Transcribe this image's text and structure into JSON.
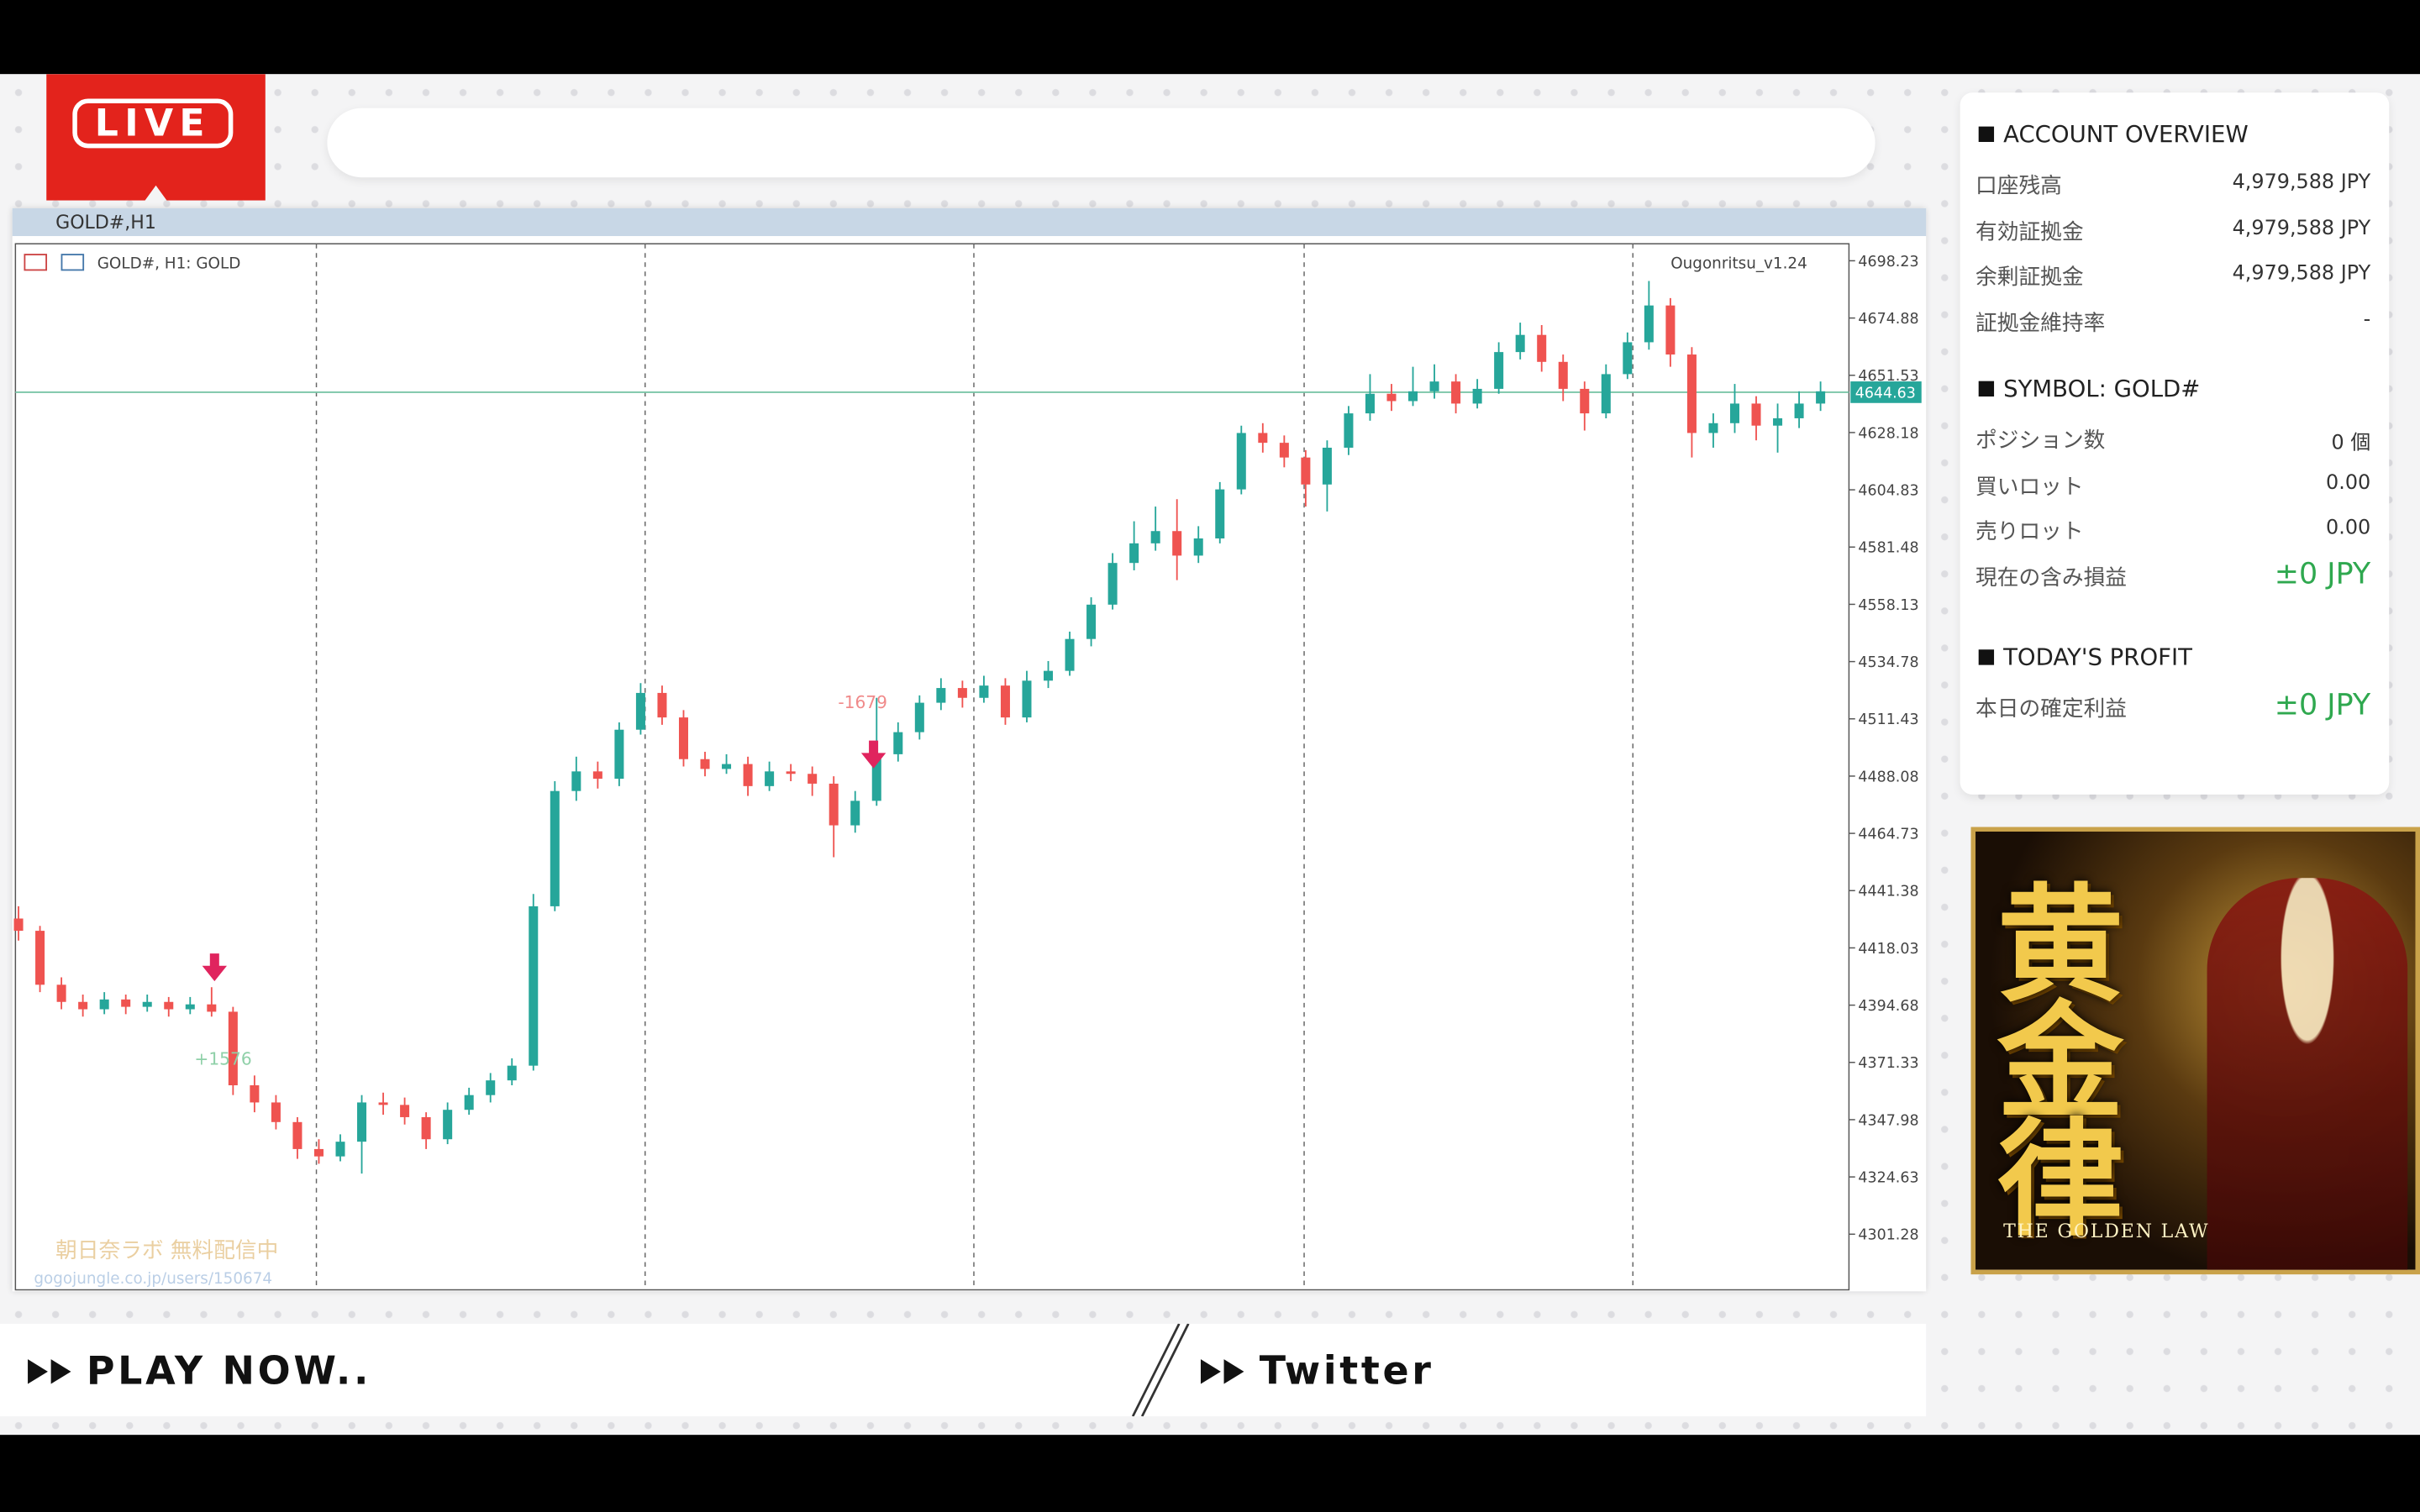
{
  "live_badge": "LIVE",
  "chart": {
    "type": "candlestick",
    "title": "GOLD#,H1",
    "symbol_label": "GOLD#, H1:  GOLD",
    "indicator": "Ougonritsu_v1.24",
    "up_color": "#26a69a",
    "down_color": "#ef5350",
    "ylim": [
      4278.59,
      4705.16
    ],
    "yticks": [
      4698.23,
      4674.88,
      4651.53,
      4628.18,
      4604.83,
      4581.48,
      4558.13,
      4534.78,
      4511.43,
      4488.08,
      4464.73,
      4441.38,
      4418.03,
      4394.68,
      4371.33,
      4347.98,
      4324.63,
      4301.28
    ],
    "current_price": 4644.63,
    "annotations": [
      "+1576",
      "-1679"
    ],
    "watermark": [
      "朝日奈ラボ 無料配信中",
      "gogojungle.co.jp/users/150674"
    ],
    "candles": [
      [
        4430,
        4435,
        4421,
        4425
      ],
      [
        4425,
        4427,
        4400,
        4403
      ],
      [
        4403,
        4406,
        4393,
        4396
      ],
      [
        4396,
        4399,
        4390,
        4393
      ],
      [
        4393,
        4400,
        4391,
        4397
      ],
      [
        4397,
        4399,
        4391,
        4394
      ],
      [
        4394,
        4399,
        4392,
        4396
      ],
      [
        4396,
        4398,
        4390,
        4393
      ],
      [
        4393,
        4398,
        4391,
        4395
      ],
      [
        4395,
        4402,
        4390,
        4392
      ],
      [
        4392,
        4394,
        4358,
        4362
      ],
      [
        4362,
        4366,
        4351,
        4355
      ],
      [
        4355,
        4358,
        4344,
        4347
      ],
      [
        4347,
        4349,
        4332,
        4336
      ],
      [
        4336,
        4340,
        4330,
        4333
      ],
      [
        4333,
        4342,
        4331,
        4339
      ],
      [
        4339,
        4358,
        4326,
        4355
      ],
      [
        4355,
        4359,
        4350,
        4354
      ],
      [
        4354,
        4357,
        4346,
        4349
      ],
      [
        4349,
        4351,
        4336,
        4340
      ],
      [
        4340,
        4355,
        4338,
        4352
      ],
      [
        4352,
        4361,
        4350,
        4358
      ],
      [
        4358,
        4367,
        4355,
        4364
      ],
      [
        4364,
        4373,
        4362,
        4370
      ],
      [
        4370,
        4440,
        4368,
        4435
      ],
      [
        4435,
        4486,
        4433,
        4482
      ],
      [
        4482,
        4496,
        4478,
        4490
      ],
      [
        4490,
        4494,
        4483,
        4487
      ],
      [
        4487,
        4510,
        4484,
        4507
      ],
      [
        4507,
        4526,
        4505,
        4522
      ],
      [
        4522,
        4525,
        4509,
        4512
      ],
      [
        4512,
        4515,
        4492,
        4495
      ],
      [
        4495,
        4498,
        4488,
        4491
      ],
      [
        4491,
        4497,
        4489,
        4493
      ],
      [
        4493,
        4496,
        4480,
        4484
      ],
      [
        4484,
        4494,
        4482,
        4490
      ],
      [
        4490,
        4493,
        4486,
        4489
      ],
      [
        4489,
        4492,
        4480,
        4485
      ],
      [
        4485,
        4488,
        4455,
        4468
      ],
      [
        4468,
        4482,
        4465,
        4478
      ],
      [
        4478,
        4520,
        4476,
        4497
      ],
      [
        4497,
        4510,
        4494,
        4506
      ],
      [
        4506,
        4521,
        4503,
        4518
      ],
      [
        4518,
        4528,
        4515,
        4524
      ],
      [
        4524,
        4527,
        4516,
        4520
      ],
      [
        4520,
        4529,
        4518,
        4525
      ],
      [
        4525,
        4528,
        4509,
        4512
      ],
      [
        4512,
        4531,
        4510,
        4527
      ],
      [
        4527,
        4535,
        4524,
        4531
      ],
      [
        4531,
        4547,
        4529,
        4544
      ],
      [
        4544,
        4561,
        4541,
        4558
      ],
      [
        4558,
        4579,
        4556,
        4575
      ],
      [
        4575,
        4592,
        4572,
        4583
      ],
      [
        4583,
        4598,
        4580,
        4588
      ],
      [
        4588,
        4601,
        4568,
        4578
      ],
      [
        4578,
        4590,
        4575,
        4585
      ],
      [
        4585,
        4608,
        4583,
        4605
      ],
      [
        4605,
        4631,
        4603,
        4628
      ],
      [
        4628,
        4632,
        4620,
        4624
      ],
      [
        4624,
        4627,
        4614,
        4618
      ],
      [
        4618,
        4621,
        4598,
        4607
      ],
      [
        4607,
        4625,
        4596,
        4622
      ],
      [
        4622,
        4639,
        4619,
        4636
      ],
      [
        4636,
        4652,
        4633,
        4644
      ],
      [
        4644,
        4648,
        4637,
        4641
      ],
      [
        4641,
        4655,
        4639,
        4645
      ],
      [
        4645,
        4656,
        4642,
        4649
      ],
      [
        4649,
        4652,
        4636,
        4640
      ],
      [
        4640,
        4650,
        4638,
        4646
      ],
      [
        4646,
        4665,
        4644,
        4661
      ],
      [
        4661,
        4673,
        4658,
        4668
      ],
      [
        4668,
        4672,
        4653,
        4657
      ],
      [
        4657,
        4660,
        4641,
        4646
      ],
      [
        4646,
        4649,
        4629,
        4636
      ],
      [
        4636,
        4656,
        4634,
        4652
      ],
      [
        4652,
        4669,
        4650,
        4665
      ],
      [
        4665,
        4690,
        4662,
        4680
      ],
      [
        4680,
        4683,
        4655,
        4660
      ],
      [
        4660,
        4663,
        4618,
        4628
      ],
      [
        4628,
        4636,
        4622,
        4632
      ],
      [
        4632,
        4648,
        4628,
        4640
      ],
      [
        4640,
        4643,
        4625,
        4631
      ],
      [
        4631,
        4640,
        4620,
        4634
      ],
      [
        4634,
        4645,
        4630,
        4640
      ],
      [
        4640,
        4649,
        4637,
        4645
      ]
    ]
  },
  "account_panel": {
    "sections": [
      {
        "header": "ACCOUNT OVERVIEW",
        "rows": [
          {
            "label": "口座残高",
            "value": "4,979,588 JPY"
          },
          {
            "label": "有効証拠金",
            "value": "4,979,588 JPY"
          },
          {
            "label": "余剰証拠金",
            "value": "4,979,588 JPY"
          },
          {
            "label": "証拠金維持率",
            "value": "-"
          }
        ]
      },
      {
        "header": "SYMBOL: GOLD#",
        "rows": [
          {
            "label": "ポジション数",
            "value": "0 個"
          },
          {
            "label": "買いロット",
            "value": "0.00"
          },
          {
            "label": "売りロット",
            "value": "0.00"
          },
          {
            "label": "現在の含み損益",
            "value": "±0 JPY",
            "highlight": true
          }
        ]
      },
      {
        "header": "TODAY'S PROFIT",
        "rows": [
          {
            "label": "本日の確定利益",
            "value": "±0 JPY",
            "highlight": true
          }
        ]
      }
    ]
  },
  "banner": {
    "title": "黄金律",
    "subtitle": "THE GOLDEN LAW"
  },
  "footer": {
    "play_now": "PLAY NOW..",
    "twitter": "Twitter"
  }
}
